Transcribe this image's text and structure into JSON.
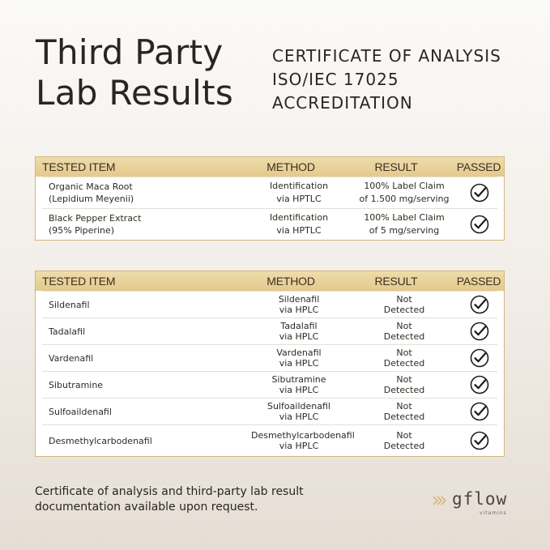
{
  "title": {
    "line1": "Third Party",
    "line2": "Lab Results"
  },
  "certificate": {
    "line1": "CERTIFICATE OF ANALYSIS",
    "line2": "ISO/IEC 17025",
    "line3": "ACCREDITATION"
  },
  "headers": {
    "item": "TESTED ITEM",
    "method": "METHOD",
    "result": "RESULT",
    "passed": "PASSED"
  },
  "table1": [
    {
      "item1": "Organic Maca Root",
      "item2": "(Lepidium Meyenii)",
      "method1": "Identification",
      "method2": "via HPTLC",
      "result1": "100% Label Claim",
      "result2": "of 1.500 mg/serving"
    },
    {
      "item1": "Black Pepper Extract",
      "item2": "(95% Piperine)",
      "method1": "Identification",
      "method2": "via HPTLC",
      "result1": "100% Label Claim",
      "result2": "of 5 mg/serving"
    }
  ],
  "table2": [
    {
      "item": "Sildenafil",
      "method1": "Sildenafil",
      "method2": "via HPLC",
      "result1": "Not",
      "result2": "Detected"
    },
    {
      "item": "Tadalafil",
      "method1": "Tadalafil",
      "method2": "via HPLC",
      "result1": "Not",
      "result2": "Detected"
    },
    {
      "item": "Vardenafil",
      "method1": "Vardenafil",
      "method2": "via HPLC",
      "result1": "Not",
      "result2": "Detected"
    },
    {
      "item": "Sibutramine",
      "method1": "Sibutramine",
      "method2": "via HPLC",
      "result1": "Not",
      "result2": "Detected"
    },
    {
      "item": "Sulfoaildenafil",
      "method1": "Sulfoaildenafil",
      "method2": "via HPLC",
      "result1": "Not",
      "result2": "Detected"
    },
    {
      "item": "Desmethylcarbodenafil",
      "method1": "Desmethylcarbodenafil",
      "method2": "via HPLC",
      "result1": "Not",
      "result2": "Detected"
    }
  ],
  "footer": {
    "line1": "Certificate of analysis and third-party lab result",
    "line2": "documentation available upon request."
  },
  "brand": {
    "name": "gflow",
    "sub": "vitamins"
  },
  "colors": {
    "accent": "#e3c98d",
    "border": "#d3b77c"
  },
  "icons": {
    "passed": "check-circle-icon",
    "brand": "chevron-arrows-icon"
  }
}
